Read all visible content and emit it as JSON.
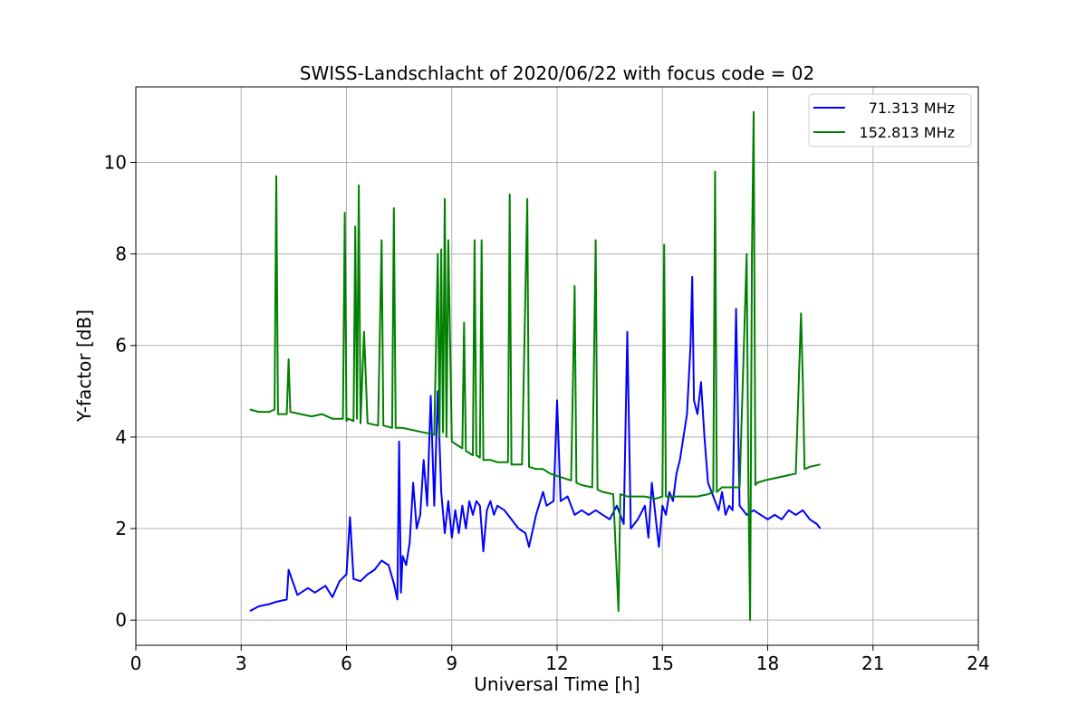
{
  "chart_data": {
    "type": "line",
    "title": "SWISS-Landschlacht of 2020/06/22 with focus code = 02",
    "xlabel": "Universal Time [h]",
    "ylabel": "Y-factor [dB]",
    "xlim": [
      0,
      24
    ],
    "ylim": [
      -0.55,
      11.65
    ],
    "x_ticks": [
      "0",
      "3",
      "6",
      "9",
      "12",
      "15",
      "18",
      "21",
      "24"
    ],
    "y_ticks": [
      "0",
      "2",
      "4",
      "6",
      "8",
      "10"
    ],
    "grid": true,
    "legend_position": "top-right",
    "series": [
      {
        "name": "71.313 MHz",
        "color": "#0000ff",
        "x": [
          3.25,
          3.5,
          3.8,
          4.0,
          4.3,
          4.35,
          4.6,
          4.9,
          5.1,
          5.4,
          5.6,
          5.8,
          6.0,
          6.1,
          6.2,
          6.4,
          6.6,
          6.8,
          7.0,
          7.2,
          7.35,
          7.45,
          7.5,
          7.55,
          7.6,
          7.7,
          7.8,
          7.9,
          8.0,
          8.1,
          8.2,
          8.3,
          8.4,
          8.5,
          8.6,
          8.7,
          8.8,
          8.9,
          9.0,
          9.1,
          9.2,
          9.3,
          9.4,
          9.5,
          9.6,
          9.7,
          9.8,
          9.9,
          10.0,
          10.1,
          10.2,
          10.3,
          10.5,
          10.7,
          10.9,
          11.1,
          11.2,
          11.4,
          11.6,
          11.7,
          11.9,
          12.0,
          12.1,
          12.3,
          12.5,
          12.7,
          12.9,
          13.1,
          13.3,
          13.5,
          13.7,
          13.9,
          14.0,
          14.1,
          14.3,
          14.5,
          14.6,
          14.7,
          14.9,
          15.0,
          15.1,
          15.2,
          15.3,
          15.4,
          15.5,
          15.6,
          15.7,
          15.8,
          15.85,
          15.9,
          16.0,
          16.1,
          16.2,
          16.3,
          16.5,
          16.6,
          16.7,
          16.8,
          16.9,
          17.0,
          17.1,
          17.2,
          17.4,
          17.6,
          17.8,
          18.0,
          18.2,
          18.4,
          18.6,
          18.8,
          19.0,
          19.2,
          19.4,
          19.5
        ],
        "y": [
          0.2,
          0.3,
          0.35,
          0.4,
          0.45,
          1.1,
          0.55,
          0.7,
          0.6,
          0.75,
          0.5,
          0.85,
          1.0,
          2.25,
          0.9,
          0.85,
          1.0,
          1.1,
          1.3,
          1.2,
          0.8,
          0.45,
          3.9,
          0.6,
          1.4,
          1.2,
          1.7,
          3.0,
          2.0,
          2.3,
          3.5,
          2.5,
          4.9,
          2.5,
          5.0,
          2.8,
          1.9,
          2.6,
          1.8,
          2.4,
          1.9,
          2.5,
          2.0,
          2.6,
          2.3,
          2.6,
          2.5,
          1.5,
          2.4,
          2.6,
          2.3,
          2.5,
          2.4,
          2.2,
          2.0,
          1.9,
          1.6,
          2.3,
          2.8,
          2.5,
          2.6,
          4.8,
          2.6,
          2.7,
          2.3,
          2.4,
          2.3,
          2.4,
          2.3,
          2.2,
          2.5,
          2.1,
          6.3,
          2.0,
          2.2,
          2.5,
          1.8,
          3.0,
          1.6,
          2.5,
          2.3,
          2.8,
          2.6,
          3.2,
          3.5,
          4.0,
          4.5,
          6.0,
          7.5,
          4.8,
          4.5,
          5.2,
          4.0,
          3.0,
          2.6,
          2.4,
          2.8,
          2.3,
          2.5,
          2.4,
          6.8,
          2.5,
          2.3,
          2.4,
          2.3,
          2.2,
          2.3,
          2.2,
          2.4,
          2.3,
          2.4,
          2.2,
          2.1,
          2.0
        ]
      },
      {
        "name": "152.813 MHz",
        "color": "#008000",
        "x": [
          3.25,
          3.5,
          3.8,
          3.95,
          4.0,
          4.05,
          4.3,
          4.35,
          4.4,
          4.7,
          5.0,
          5.3,
          5.6,
          5.9,
          5.95,
          6.0,
          6.05,
          6.2,
          6.25,
          6.3,
          6.35,
          6.4,
          6.5,
          6.6,
          6.9,
          7.0,
          7.05,
          7.3,
          7.35,
          7.4,
          7.6,
          7.9,
          8.2,
          8.5,
          8.6,
          8.65,
          8.7,
          8.75,
          8.8,
          8.85,
          8.9,
          9.0,
          9.2,
          9.3,
          9.35,
          9.4,
          9.6,
          9.65,
          9.7,
          9.8,
          9.85,
          9.9,
          10.1,
          10.3,
          10.6,
          10.65,
          10.7,
          11.0,
          11.15,
          11.2,
          11.4,
          11.6,
          11.8,
          12.0,
          12.2,
          12.4,
          12.5,
          12.55,
          12.7,
          13.0,
          13.1,
          13.15,
          13.3,
          13.6,
          13.75,
          13.8,
          14.0,
          14.2,
          14.5,
          14.8,
          15.0,
          15.05,
          15.1,
          15.4,
          15.7,
          16.0,
          16.3,
          16.45,
          16.5,
          16.55,
          16.7,
          17.0,
          17.1,
          17.2,
          17.4,
          17.45,
          17.5,
          17.55,
          17.6,
          17.65,
          17.7,
          17.9,
          18.2,
          18.5,
          18.8,
          18.95,
          19.0,
          19.05,
          19.2,
          19.5
        ],
        "y": [
          4.6,
          4.55,
          4.55,
          4.6,
          9.7,
          4.5,
          4.5,
          5.7,
          4.55,
          4.5,
          4.45,
          4.5,
          4.4,
          4.4,
          8.9,
          4.35,
          4.4,
          4.35,
          8.6,
          4.4,
          9.5,
          4.3,
          6.3,
          4.3,
          4.25,
          8.3,
          4.25,
          4.2,
          9.0,
          4.2,
          4.2,
          4.15,
          4.1,
          4.05,
          8.0,
          4.0,
          8.1,
          4.1,
          9.2,
          4.0,
          8.3,
          3.9,
          3.8,
          3.75,
          6.5,
          3.7,
          3.6,
          8.3,
          3.6,
          3.55,
          8.3,
          3.5,
          3.5,
          3.45,
          3.45,
          9.3,
          3.4,
          3.4,
          9.2,
          3.35,
          3.3,
          3.3,
          3.2,
          3.15,
          3.1,
          3.05,
          7.3,
          3.0,
          2.95,
          2.9,
          8.3,
          2.85,
          2.8,
          2.75,
          0.2,
          2.75,
          2.7,
          2.7,
          2.7,
          2.65,
          2.7,
          8.2,
          2.7,
          2.7,
          2.7,
          2.7,
          2.75,
          2.8,
          9.8,
          2.8,
          2.9,
          2.9,
          2.9,
          2.9,
          8.0,
          2.95,
          0.0,
          8.0,
          11.1,
          2.95,
          3.0,
          3.05,
          3.1,
          3.15,
          3.2,
          6.7,
          5.2,
          3.3,
          3.35,
          3.4
        ]
      }
    ]
  }
}
